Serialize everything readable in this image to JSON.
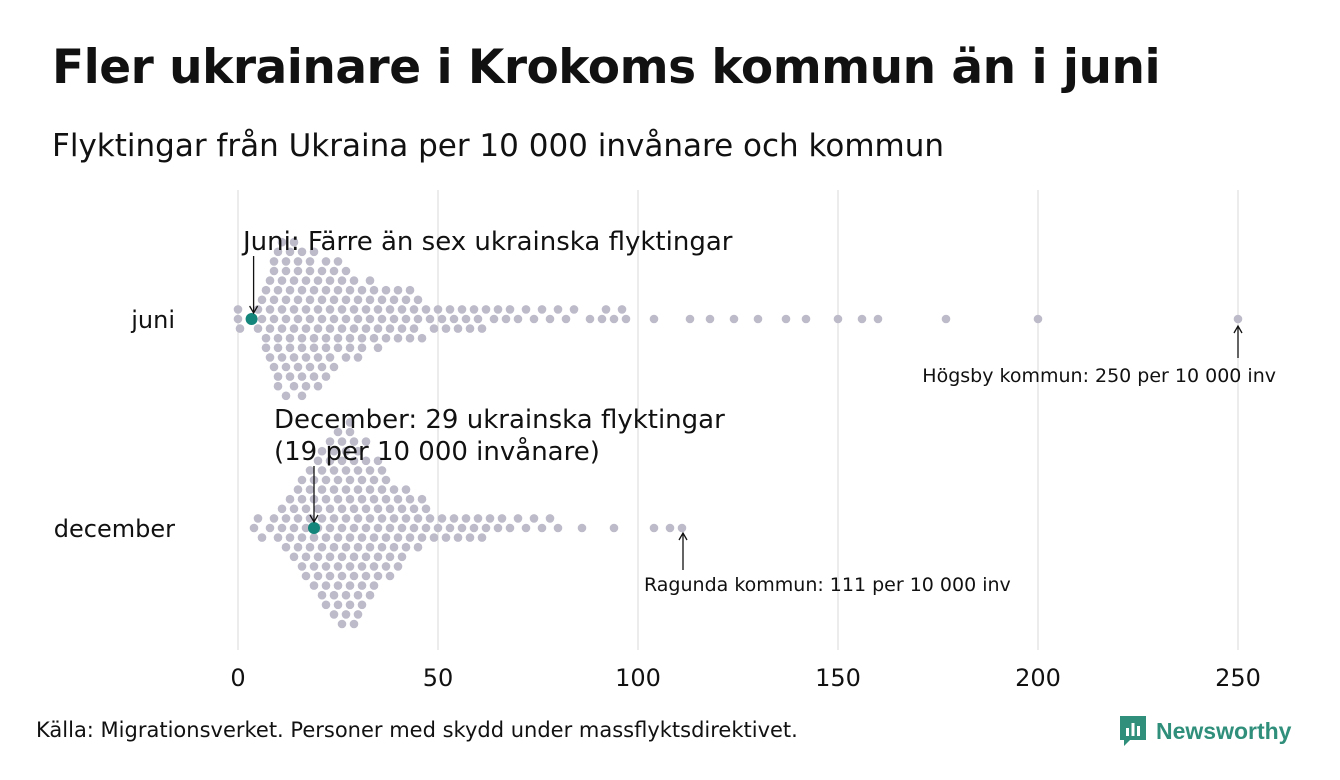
{
  "title": "Fler ukrainare i Krokoms kommun än i juni",
  "subtitle": "Flyktingar från Ukraina per 10 000 invånare och kommun",
  "source": "Källa: Migrationsverket. Personer med skydd under massflyktsdirektivet.",
  "brand": "Newsworthy",
  "colors": {
    "dot": "#bdbac9",
    "highlight": "#14857a",
    "grid": "#d9d9d9",
    "brand": "#2f8f7a"
  },
  "chart_data": {
    "type": "scatter",
    "subtype": "beeswarm",
    "categories": [
      "juni",
      "december"
    ],
    "xlim": [
      0,
      250
    ],
    "xticks": [
      "0",
      "50",
      "100",
      "150",
      "200",
      "250"
    ],
    "grid": "vertical",
    "series": [
      {
        "name": "juni",
        "highlight": {
          "value": 3.4,
          "label": "Juni: Färre än sex ukrainska flyktingar"
        },
        "max_label": {
          "value": 250,
          "label": "Högsby kommun: 250 per 10 000 inv"
        },
        "values": [
          0,
          0,
          0.5,
          3.4,
          5,
          5,
          6,
          6,
          7,
          7,
          7,
          8,
          8,
          8,
          8,
          9,
          9,
          9,
          9,
          9,
          10,
          10,
          10,
          10,
          10,
          10,
          11,
          11,
          11,
          11,
          11,
          12,
          12,
          12,
          12,
          12,
          12,
          13,
          13,
          13,
          13,
          13,
          14,
          14,
          14,
          14,
          14,
          14,
          15,
          15,
          15,
          15,
          15,
          16,
          16,
          16,
          16,
          16,
          16,
          17,
          17,
          17,
          17,
          17,
          18,
          18,
          18,
          18,
          18,
          19,
          19,
          19,
          19,
          19,
          20,
          20,
          20,
          20,
          20,
          21,
          21,
          21,
          21,
          22,
          22,
          22,
          22,
          22,
          23,
          23,
          23,
          23,
          24,
          24,
          24,
          24,
          25,
          25,
          25,
          25,
          26,
          26,
          26,
          27,
          27,
          27,
          27,
          28,
          28,
          28,
          29,
          29,
          29,
          30,
          30,
          30,
          31,
          31,
          31,
          32,
          32,
          33,
          33,
          33,
          34,
          34,
          35,
          35,
          35,
          36,
          36,
          37,
          37,
          38,
          38,
          39,
          39,
          40,
          40,
          41,
          41,
          42,
          42,
          43,
          43,
          44,
          44,
          45,
          45,
          46,
          47,
          48,
          49,
          50,
          51,
          52,
          53,
          54,
          55,
          56,
          57,
          58,
          59,
          60,
          61,
          62,
          64,
          65,
          67,
          68,
          70,
          72,
          74,
          76,
          78,
          80,
          82,
          84,
          88,
          91,
          92,
          94,
          96,
          97,
          104,
          113,
          118,
          124,
          130,
          137,
          142,
          150,
          156,
          160,
          177,
          200,
          250
        ]
      },
      {
        "name": "december",
        "highlight": {
          "value": 19,
          "label": "December: 29 ukrainska flyktingar",
          "label2": "(19 per 10 000 invånare)"
        },
        "max_label": {
          "value": 111,
          "label": "Ragunda kommun: 111 per 10 000 inv"
        },
        "values": [
          4,
          5,
          6,
          8,
          9,
          10,
          11,
          11,
          12,
          12,
          13,
          13,
          14,
          14,
          14,
          15,
          15,
          15,
          16,
          16,
          16,
          16,
          17,
          17,
          17,
          17,
          18,
          18,
          18,
          18,
          19,
          19,
          19,
          19,
          19,
          20,
          20,
          20,
          20,
          20,
          21,
          21,
          21,
          21,
          21,
          21,
          22,
          22,
          22,
          22,
          22,
          22,
          23,
          23,
          23,
          23,
          23,
          23,
          24,
          24,
          24,
          24,
          24,
          24,
          24,
          25,
          25,
          25,
          25,
          25,
          25,
          25,
          26,
          26,
          26,
          26,
          26,
          26,
          26,
          27,
          27,
          27,
          27,
          27,
          27,
          27,
          28,
          28,
          28,
          28,
          28,
          28,
          28,
          28,
          29,
          29,
          29,
          29,
          29,
          29,
          29,
          30,
          30,
          30,
          30,
          30,
          30,
          30,
          31,
          31,
          31,
          31,
          31,
          31,
          32,
          32,
          32,
          32,
          32,
          32,
          33,
          33,
          33,
          33,
          33,
          34,
          34,
          34,
          34,
          34,
          35,
          35,
          35,
          35,
          35,
          36,
          36,
          36,
          36,
          37,
          37,
          37,
          37,
          38,
          38,
          38,
          38,
          39,
          39,
          39,
          40,
          40,
          40,
          41,
          41,
          41,
          42,
          42,
          42,
          43,
          43,
          44,
          44,
          45,
          45,
          46,
          46,
          47,
          47,
          48,
          49,
          50,
          51,
          52,
          53,
          54,
          55,
          56,
          57,
          58,
          59,
          60,
          61,
          62,
          63,
          65,
          66,
          68,
          70,
          72,
          74,
          76,
          78,
          80,
          86,
          94,
          104,
          108,
          111
        ]
      }
    ]
  }
}
